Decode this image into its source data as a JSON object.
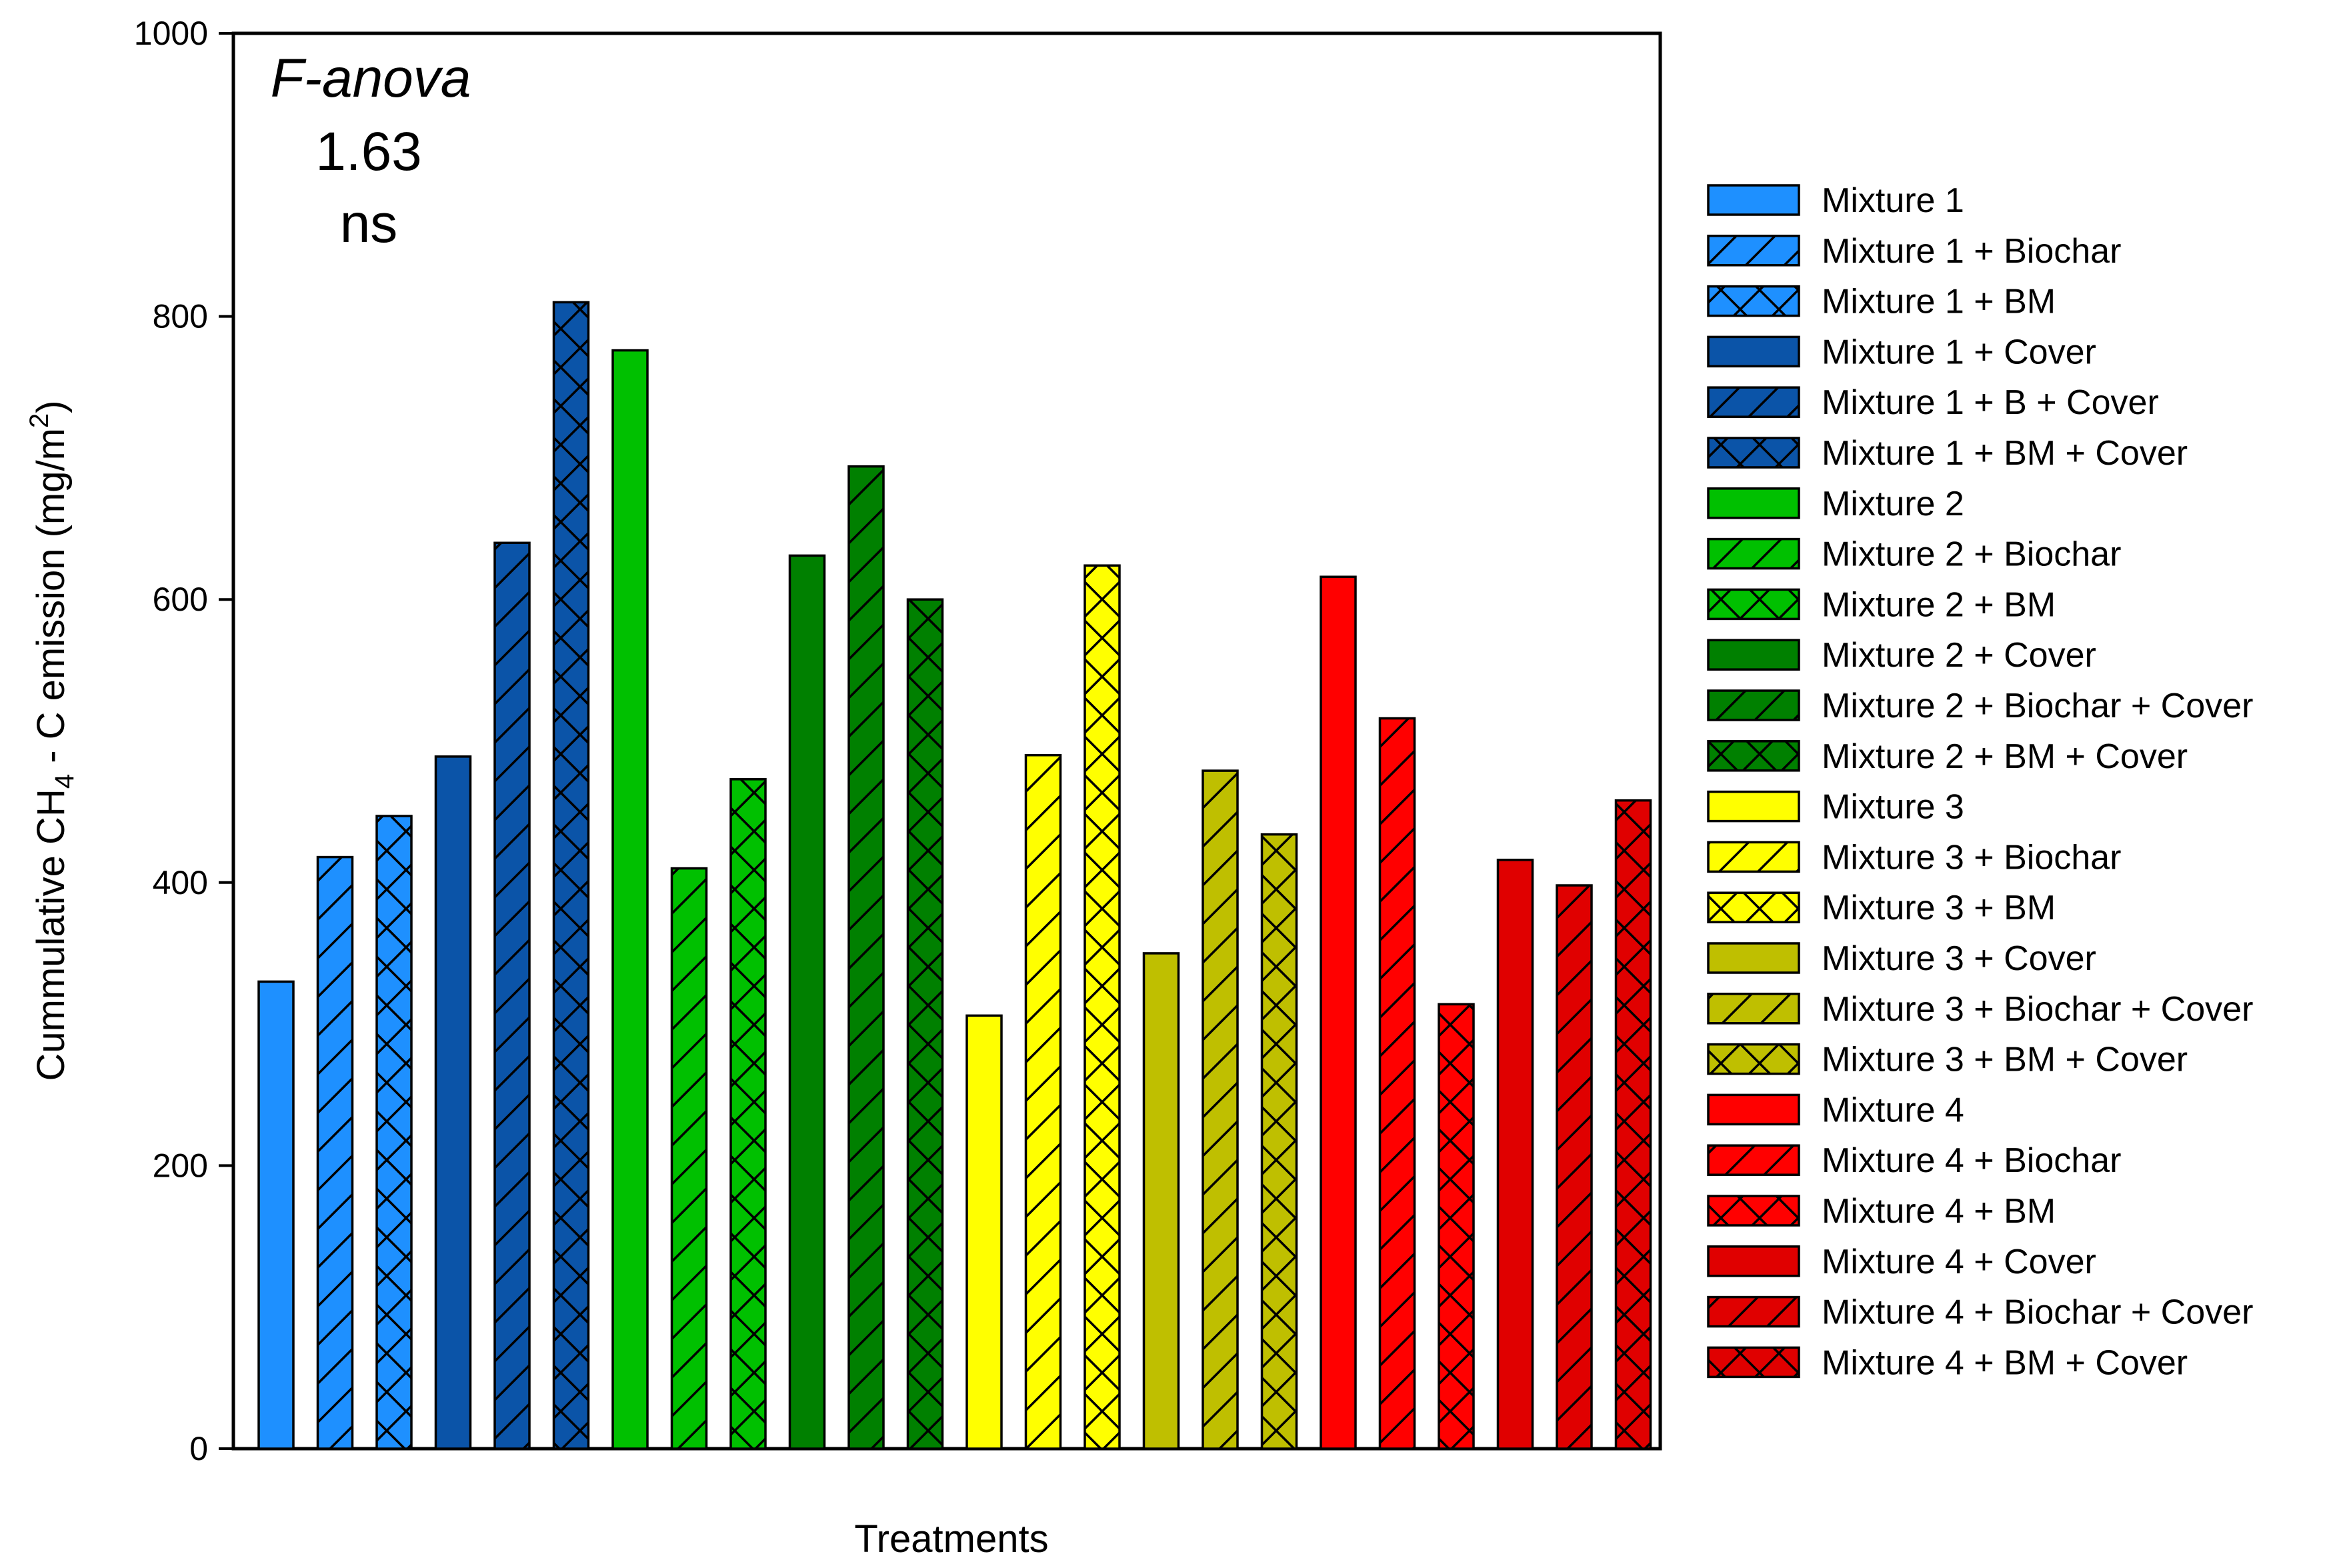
{
  "chart_data": {
    "type": "bar",
    "title": "",
    "xlabel": "Treatments",
    "ylabel": "Cummulative CH4 - C emission (mg/m2)",
    "ylabel_parts": {
      "prefix": "Cummulative CH",
      "sub": "4",
      "middle": " - C emission (mg/m",
      "sup": "2",
      "suffix": ")"
    },
    "ylim": [
      0,
      1000
    ],
    "yticks": [
      "0",
      "200",
      "400",
      "600",
      "800",
      "1000"
    ],
    "legend_position": "right",
    "annotation": {
      "stat": "F-anova",
      "value": "1.63",
      "significance": "ns"
    },
    "categories": [
      "Mixture 1",
      "Mixture 1 + Biochar",
      "Mixture 1 + BM",
      "Mixture 1 + Cover",
      "Mixture 1 + B + Cover",
      "Mixture 1 + BM + Cover",
      "Mixture 2",
      "Mixture 2 + Biochar",
      "Mixture 2 + BM",
      "Mixture 2 + Cover",
      "Mixture 2 + Biochar + Cover",
      "Mixture 2 + BM + Cover",
      "Mixture 3",
      "Mixture 3 + Biochar",
      "Mixture 3 + BM",
      "Mixture 3 + Cover",
      "Mixture 3 + Biochar + Cover",
      "Mixture 3 + BM + Cover",
      "Mixture 4",
      "Mixture 4 + Biochar",
      "Mixture 4 + BM",
      "Mixture 4 + Cover",
      "Mixture 4 + Biochar + Cover",
      "Mixture 4 + BM + Cover"
    ],
    "values": [
      330,
      418,
      447,
      489,
      640,
      810,
      776,
      410,
      473,
      631,
      694,
      600,
      306,
      490,
      624,
      350,
      479,
      434,
      616,
      516,
      314,
      416,
      398,
      458
    ],
    "colors": [
      "#1E90FF",
      "#1E90FF",
      "#1E90FF",
      "#0B54A8",
      "#0B54A8",
      "#0B54A8",
      "#00C000",
      "#00C000",
      "#00C000",
      "#008000",
      "#008000",
      "#008000",
      "#FFFF00",
      "#FFFF00",
      "#FFFF00",
      "#BFBF00",
      "#BFBF00",
      "#BFBF00",
      "#FF0000",
      "#FF0000",
      "#FF0000",
      "#E00000",
      "#E00000",
      "#E00000"
    ],
    "patterns": [
      "none",
      "diagonal",
      "cross",
      "none",
      "diagonal",
      "cross",
      "none",
      "diagonal",
      "cross",
      "none",
      "diagonal",
      "cross",
      "none",
      "diagonal",
      "cross",
      "none",
      "diagonal",
      "cross",
      "none",
      "diagonal",
      "cross",
      "none",
      "diagonal",
      "cross"
    ]
  }
}
